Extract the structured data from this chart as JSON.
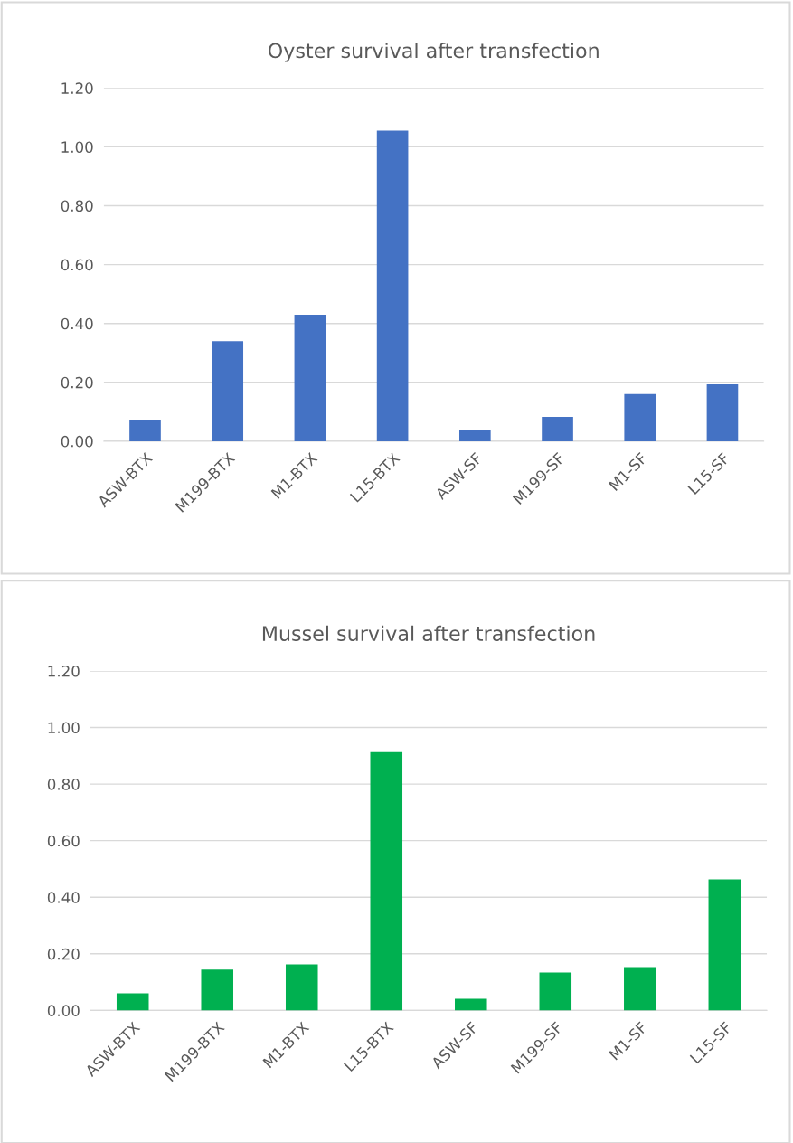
{
  "chart_data": [
    {
      "type": "bar",
      "title": "Oyster survival after transfection",
      "categories": [
        "ASW-BTX",
        "M199-BTX",
        "M1-BTX",
        "L15-BTX",
        "ASW-SF",
        "M199-SF",
        "M1-SF",
        "L15-SF"
      ],
      "values": [
        0.07,
        0.34,
        0.43,
        1.055,
        0.037,
        0.083,
        0.16,
        0.193
      ],
      "color": "#4472c4",
      "ylim": [
        0,
        1.2
      ],
      "yticks": [
        {
          "value": 0,
          "label": "0.00"
        },
        {
          "value": 0.2,
          "label": "0.20"
        },
        {
          "value": 0.4,
          "label": "0.40"
        },
        {
          "value": 0.6,
          "label": "0.60"
        },
        {
          "value": 0.8,
          "label": "0.80"
        },
        {
          "value": 1.0,
          "label": "1.00"
        },
        {
          "value": 1.2,
          "label": "1.20"
        }
      ],
      "grid": "y",
      "legend": false
    },
    {
      "type": "bar",
      "title": "Mussel survival after transfection",
      "categories": [
        "ASW-BTX",
        "M199-BTX",
        "M1-BTX",
        "L15-BTX",
        "ASW-SF",
        "M199-SF",
        "M1-SF",
        "L15-SF"
      ],
      "values": [
        0.06,
        0.144,
        0.163,
        0.913,
        0.041,
        0.134,
        0.153,
        0.463
      ],
      "color": "#00b050",
      "ylim": [
        0,
        1.2
      ],
      "yticks": [
        {
          "value": 0,
          "label": "0.00"
        },
        {
          "value": 0.2,
          "label": "0.20"
        },
        {
          "value": 0.4,
          "label": "0.40"
        },
        {
          "value": 0.6,
          "label": "0.60"
        },
        {
          "value": 0.8,
          "label": "0.80"
        },
        {
          "value": 1.0,
          "label": "1.00"
        },
        {
          "value": 1.2,
          "label": "1.20"
        }
      ],
      "grid": "y",
      "legend": false
    }
  ]
}
